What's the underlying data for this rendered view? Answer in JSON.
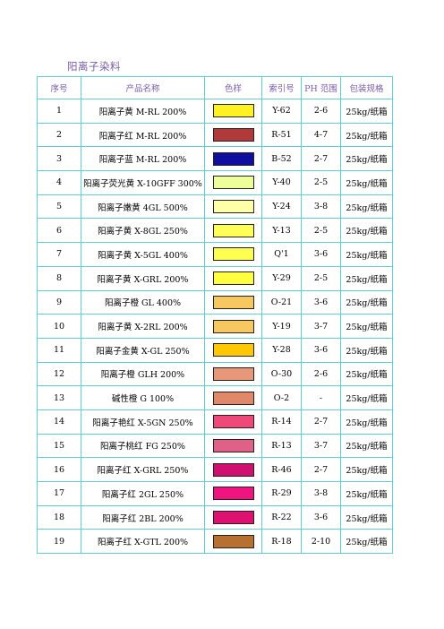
{
  "title": "阳离子染料",
  "headers": {
    "index": "序号",
    "name": "产品名称",
    "color": "色样",
    "code": "索引号",
    "ph": "PH 范围",
    "pack": "包装规格"
  },
  "rows": [
    {
      "index": "1",
      "name": "阳离子黄 M-RL 200%",
      "swatch": "#fff220",
      "code": "Y-62",
      "ph": "2-6",
      "pack": "25kg/纸箱"
    },
    {
      "index": "2",
      "name": "阳离子红 M-RL 200%",
      "swatch": "#b03a3a",
      "code": "R-51",
      "ph": "4-7",
      "pack": "25kg/纸箱"
    },
    {
      "index": "3",
      "name": "阳离子蓝 M-RL 200%",
      "swatch": "#0f0e9e",
      "code": "B-52",
      "ph": "2-7",
      "pack": "25kg/纸箱"
    },
    {
      "index": "4",
      "name": "阳离子荧光黄 X-10GFF 300%",
      "swatch": "#eeff99",
      "code": "Y-40",
      "ph": "2-5",
      "pack": "25kg/纸箱"
    },
    {
      "index": "5",
      "name": "阳离子嫩黄 4GL 500%",
      "swatch": "#ffffa8",
      "code": "Y-24",
      "ph": "3-8",
      "pack": "25kg/纸箱"
    },
    {
      "index": "6",
      "name": "阳离子黄 X-8GL 250%",
      "swatch": "#ffff55",
      "code": "Y-13",
      "ph": "2-5",
      "pack": "25kg/纸箱"
    },
    {
      "index": "7",
      "name": "阳离子黄 X-5GL 400%",
      "swatch": "#ffff50",
      "code": "Q'1",
      "ph": "3-6",
      "pack": "25kg/纸箱"
    },
    {
      "index": "8",
      "name": "阳离子黄 X-GRL 200%",
      "swatch": "#ffff40",
      "code": "Y-29",
      "ph": "2-5",
      "pack": "25kg/纸箱"
    },
    {
      "index": "9",
      "name": "阳离子橙 GL 400%",
      "swatch": "#f8c860",
      "code": "O-21",
      "ph": "3-6",
      "pack": "25kg/纸箱"
    },
    {
      "index": "10",
      "name": "阳离子黄 X-2RL 200%",
      "swatch": "#f8c860",
      "code": "Y-19",
      "ph": "3-7",
      "pack": "25kg/纸箱"
    },
    {
      "index": "11",
      "name": "阳离子金黄 X-GL 250%",
      "swatch": "#ffc800",
      "code": "Y-28",
      "ph": "3-6",
      "pack": "25kg/纸箱"
    },
    {
      "index": "12",
      "name": "阳离子橙 GLH 200%",
      "swatch": "#e89878",
      "code": "O-30",
      "ph": "2-6",
      "pack": "25kg/纸箱"
    },
    {
      "index": "13",
      "name": "碱性橙 G 100%",
      "swatch": "#e08868",
      "code": "O-2",
      "ph": "-",
      "pack": "25kg/纸箱"
    },
    {
      "index": "14",
      "name": "阳离子艳红 X-5GN 250%",
      "swatch": "#f04878",
      "code": "R-14",
      "ph": "2-7",
      "pack": "25kg/纸箱"
    },
    {
      "index": "15",
      "name": "阳离子桃红 FG 250%",
      "swatch": "#e06088",
      "code": "R-13",
      "ph": "3-7",
      "pack": "25kg/纸箱"
    },
    {
      "index": "16",
      "name": "阳离子红 X-GRL 250%",
      "swatch": "#d01070",
      "code": "R-46",
      "ph": "2-7",
      "pack": "25kg/纸箱"
    },
    {
      "index": "17",
      "name": "阳离子红 2GL 250%",
      "swatch": "#f01480",
      "code": "R-29",
      "ph": "3-8",
      "pack": "25kg/纸箱"
    },
    {
      "index": "18",
      "name": "阳离子红 2BL 200%",
      "swatch": "#e01070",
      "code": "R-22",
      "ph": "3-6",
      "pack": "25kg/纸箱"
    },
    {
      "index": "19",
      "name": "阳离子红 X-GTL 200%",
      "swatch": "#b87030",
      "code": "R-18",
      "ph": "2-10",
      "pack": "25kg/纸箱"
    }
  ]
}
